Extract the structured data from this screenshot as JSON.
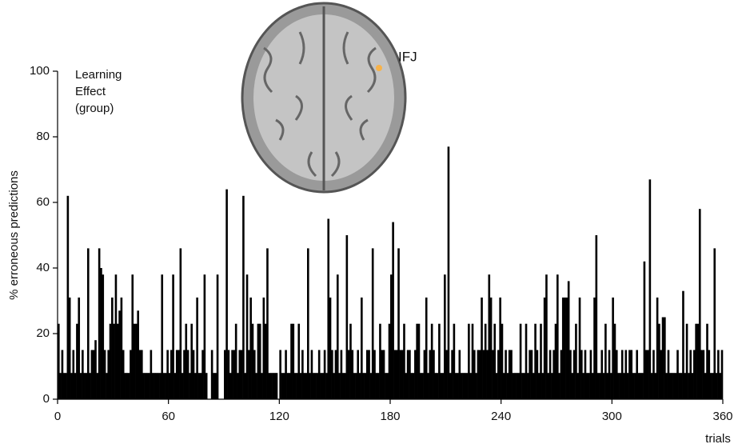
{
  "chart_data": {
    "type": "bar",
    "color": "#000000",
    "xlabel": "trials",
    "ylabel": "% erroneous predictions",
    "annotation": [
      "Learning",
      "Effect",
      "(group)"
    ],
    "brain_label": "IFJ",
    "xlim": [
      0,
      360
    ],
    "xticks": [
      0,
      60,
      120,
      180,
      240,
      300,
      360
    ],
    "ylim": [
      0,
      100
    ],
    "yticks": [
      0,
      20,
      40,
      60,
      80,
      100
    ],
    "values": [
      23,
      8,
      15,
      8,
      8,
      62,
      31,
      8,
      15,
      8,
      23,
      31,
      8,
      15,
      8,
      8,
      46,
      8,
      15,
      15,
      18,
      8,
      46,
      40,
      38,
      15,
      8,
      15,
      23,
      31,
      23,
      38,
      23,
      27,
      31,
      15,
      8,
      8,
      8,
      15,
      38,
      23,
      23,
      27,
      15,
      15,
      8,
      8,
      8,
      8,
      15,
      8,
      8,
      8,
      8,
      8,
      38,
      8,
      8,
      15,
      8,
      15,
      38,
      8,
      15,
      15,
      46,
      8,
      15,
      23,
      15,
      8,
      23,
      15,
      8,
      31,
      8,
      8,
      15,
      38,
      8,
      0,
      0,
      15,
      8,
      8,
      38,
      0,
      0,
      0,
      15,
      64,
      15,
      8,
      15,
      15,
      23,
      8,
      15,
      15,
      62,
      8,
      38,
      15,
      31,
      23,
      15,
      8,
      23,
      23,
      8,
      31,
      23,
      46,
      8,
      8,
      8,
      8,
      8,
      0,
      15,
      8,
      8,
      15,
      8,
      8,
      23,
      23,
      8,
      8,
      23,
      8,
      15,
      8,
      8,
      46,
      8,
      15,
      8,
      8,
      8,
      15,
      8,
      8,
      15,
      8,
      55,
      31,
      15,
      8,
      15,
      38,
      8,
      15,
      8,
      8,
      50,
      15,
      23,
      15,
      8,
      8,
      15,
      8,
      31,
      8,
      8,
      15,
      15,
      8,
      46,
      15,
      8,
      8,
      23,
      15,
      15,
      8,
      8,
      23,
      38,
      54,
      15,
      15,
      46,
      15,
      15,
      23,
      8,
      15,
      15,
      8,
      8,
      15,
      23,
      23,
      8,
      8,
      15,
      31,
      8,
      15,
      23,
      15,
      8,
      8,
      23,
      8,
      8,
      38,
      15,
      77,
      8,
      15,
      23,
      8,
      8,
      15,
      8,
      8,
      8,
      8,
      23,
      8,
      23,
      15,
      8,
      15,
      15,
      31,
      15,
      23,
      15,
      38,
      31,
      15,
      23,
      8,
      15,
      31,
      23,
      8,
      15,
      8,
      15,
      15,
      8,
      8,
      8,
      8,
      23,
      8,
      8,
      23,
      8,
      15,
      15,
      8,
      23,
      15,
      8,
      23,
      8,
      31,
      38,
      8,
      15,
      8,
      15,
      23,
      38,
      8,
      15,
      31,
      31,
      31,
      36,
      15,
      8,
      15,
      23,
      8,
      31,
      15,
      8,
      15,
      8,
      8,
      15,
      8,
      31,
      50,
      8,
      8,
      15,
      8,
      23,
      8,
      15,
      8,
      31,
      23,
      15,
      8,
      8,
      15,
      8,
      15,
      8,
      15,
      15,
      8,
      8,
      15,
      8,
      8,
      8,
      42,
      15,
      15,
      67,
      8,
      15,
      8,
      31,
      23,
      15,
      25,
      25,
      8,
      15,
      8,
      8,
      8,
      8,
      15,
      8,
      8,
      33,
      8,
      23,
      8,
      15,
      8,
      15,
      23,
      23,
      58,
      15,
      15,
      8,
      23,
      15,
      8,
      8,
      46,
      8,
      15,
      8,
      15
    ]
  }
}
